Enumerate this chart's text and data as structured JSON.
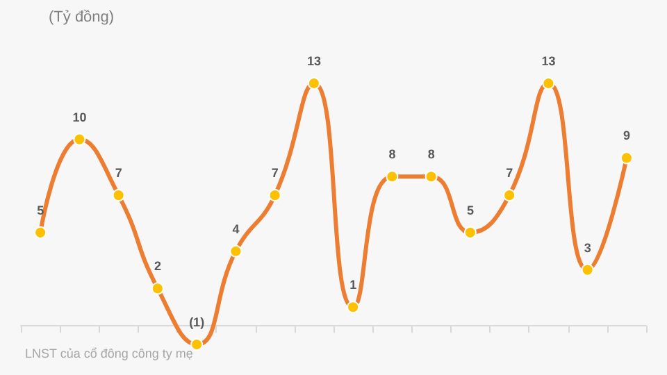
{
  "chart_data": {
    "type": "line",
    "subtitle": "(Tỷ đồng)",
    "annotations": [
      "LNST của cổ đông công ty mẹ"
    ],
    "categories": [
      null,
      null,
      null,
      null,
      null,
      null,
      null,
      null,
      null,
      null,
      null,
      null,
      null,
      null,
      null,
      null
    ],
    "series": [
      {
        "color": "#ed7d31",
        "values": [
          5,
          10,
          7,
          2,
          -1,
          4,
          7,
          13,
          1,
          8,
          8,
          5,
          7,
          13,
          3,
          9
        ],
        "value_labels": [
          "5",
          "10",
          "7",
          "2",
          "(1)",
          "4",
          "7",
          "13",
          "1",
          "8",
          "8",
          "5",
          "7",
          "13",
          "3",
          "9"
        ]
      }
    ],
    "marker": "circle",
    "grid": false
  }
}
